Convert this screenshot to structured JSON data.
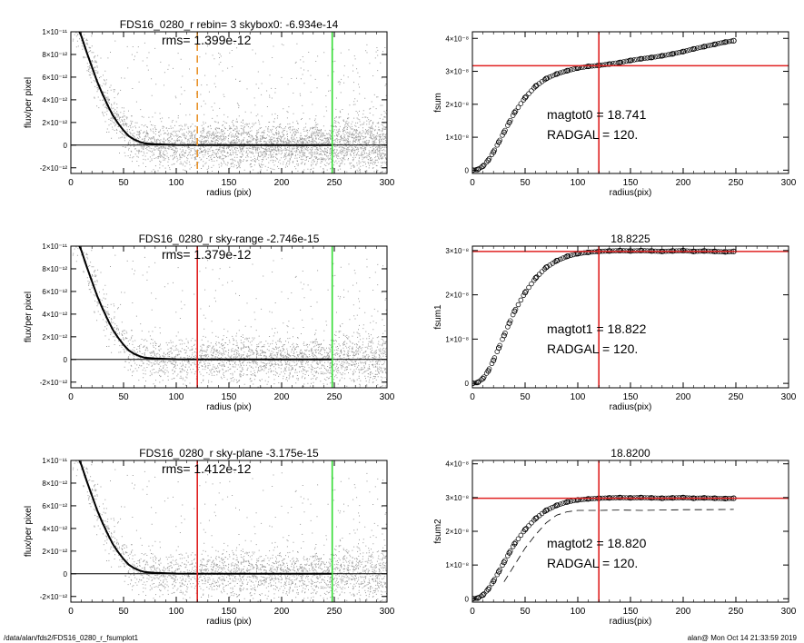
{
  "footer": {
    "left": "/data/alan/fds2/FDS16_0280_r_fsumplot1",
    "right": "alan@  Mon Oct 14 21:33:59 2019"
  },
  "colors": {
    "vline_orange": "#e8922a",
    "vline_red": "#e02020",
    "vline_green": "#33dd33",
    "scatter": "#9a9a9a",
    "curve": "#000000"
  },
  "chart_data": [
    {
      "id": "left1",
      "type": "scatter",
      "title": "FDS16_0280_r rebin= 3    skybox0: -6.934e-14",
      "annotation": "rms= 1.399e-12",
      "xlabel": "radius (pix)",
      "ylabel": "flux/per pixel",
      "xlim": [
        0,
        300
      ],
      "ylim": [
        -2.5e-12,
        1e-11
      ],
      "xticks": [
        0,
        50,
        100,
        150,
        200,
        250,
        300
      ],
      "xtick_labels": [
        "0",
        "50",
        "100",
        "150",
        "200",
        "250",
        "300"
      ],
      "yticks": [
        -2e-12,
        0,
        2e-12,
        4e-12,
        6e-12,
        8e-12,
        1e-11
      ],
      "ytick_labels": [
        "-2×10⁻¹²",
        "0",
        "2×10⁻¹²",
        "4×10⁻¹²",
        "6×10⁻¹²",
        "8×10⁻¹²",
        "1×10⁻¹¹"
      ],
      "vlines": [
        {
          "x": 120,
          "color": "orange",
          "style": "dashed"
        },
        {
          "x": 248,
          "color": "green",
          "style": "solid"
        }
      ],
      "hlines": [],
      "profile_curve": {
        "x": [
          8,
          10,
          15,
          20,
          25,
          30,
          35,
          40,
          45,
          50,
          55,
          60,
          65,
          70,
          80,
          100,
          150,
          200,
          248
        ],
        "y": [
          1e-11,
          9.6e-12,
          8.2e-12,
          6.9e-12,
          5.6e-12,
          4.5e-12,
          3.5e-12,
          2.6e-12,
          1.9e-12,
          1.3e-12,
          8e-13,
          5e-13,
          3e-13,
          1.5e-13,
          8e-14,
          2e-14,
          0,
          0,
          0
        ]
      },
      "text_lines": []
    },
    {
      "id": "right1",
      "type": "scatter",
      "title": "",
      "xlabel": "radius(pix)",
      "ylabel": "fsum",
      "xlim": [
        0,
        300
      ],
      "ylim": [
        -1e-09,
        4.2e-08
      ],
      "xticks": [
        0,
        50,
        100,
        150,
        200,
        250,
        300
      ],
      "xtick_labels": [
        "0",
        "50",
        "100",
        "150",
        "200",
        "250",
        "300"
      ],
      "yticks": [
        0,
        1e-08,
        2e-08,
        3e-08,
        4e-08
      ],
      "ytick_labels": [
        "0",
        "1×10⁻⁸",
        "2×10⁻⁸",
        "3×10⁻⁸",
        "4×10⁻⁸"
      ],
      "vlines": [
        {
          "x": 120,
          "color": "red",
          "style": "solid"
        }
      ],
      "hlines": [
        {
          "y": 3.17e-08,
          "color": "red",
          "style": "solid"
        }
      ],
      "cumulative": {
        "x": [
          0,
          5,
          10,
          15,
          20,
          25,
          30,
          35,
          40,
          50,
          60,
          70,
          80,
          90,
          100,
          110,
          120,
          130,
          140,
          150,
          160,
          170,
          180,
          190,
          200,
          210,
          220,
          230,
          240,
          248
        ],
        "y": [
          0,
          2e-10,
          1.2e-09,
          3e-09,
          5.5e-09,
          8.5e-09,
          1.15e-08,
          1.45e-08,
          1.75e-08,
          2.2e-08,
          2.55e-08,
          2.78e-08,
          2.92e-08,
          3.02e-08,
          3.1e-08,
          3.15e-08,
          3.18e-08,
          3.22e-08,
          3.27e-08,
          3.33e-08,
          3.38e-08,
          3.42e-08,
          3.47e-08,
          3.53e-08,
          3.6e-08,
          3.68e-08,
          3.75e-08,
          3.82e-08,
          3.89e-08,
          3.93e-08
        ]
      },
      "text_lines": [
        "magtot0 =  18.741",
        "RADGAL =    120."
      ]
    },
    {
      "id": "left2",
      "type": "scatter",
      "title": "FDS16_0280_r sky-range -2.746e-15",
      "annotation": "rms= 1.379e-12",
      "xlabel": "radius (pix)",
      "ylabel": "flux/per pixel",
      "xlim": [
        0,
        300
      ],
      "ylim": [
        -2.5e-12,
        1e-11
      ],
      "xticks": [
        0,
        50,
        100,
        150,
        200,
        250,
        300
      ],
      "xtick_labels": [
        "0",
        "50",
        "100",
        "150",
        "200",
        "250",
        "300"
      ],
      "yticks": [
        -2e-12,
        0,
        2e-12,
        4e-12,
        6e-12,
        8e-12,
        1e-11
      ],
      "ytick_labels": [
        "-2×10⁻¹²",
        "0",
        "2×10⁻¹²",
        "4×10⁻¹²",
        "6×10⁻¹²",
        "8×10⁻¹²",
        "1×10⁻¹¹"
      ],
      "vlines": [
        {
          "x": 120,
          "color": "red",
          "style": "solid"
        },
        {
          "x": 248,
          "color": "green",
          "style": "solid"
        }
      ],
      "hlines": [],
      "profile_curve": {
        "x": [
          8,
          10,
          15,
          20,
          25,
          30,
          35,
          40,
          45,
          50,
          55,
          60,
          65,
          70,
          80,
          100,
          150,
          200,
          248
        ],
        "y": [
          1e-11,
          9.6e-12,
          8.2e-12,
          6.9e-12,
          5.6e-12,
          4.5e-12,
          3.5e-12,
          2.6e-12,
          1.9e-12,
          1.3e-12,
          8e-13,
          5e-13,
          3e-13,
          1.5e-13,
          8e-14,
          2e-14,
          0,
          0,
          0
        ]
      },
      "text_lines": []
    },
    {
      "id": "right2",
      "type": "scatter",
      "title": "18.8225",
      "xlabel": "radius(pix)",
      "ylabel": "fsum1",
      "xlim": [
        0,
        300
      ],
      "ylim": [
        -1e-09,
        3.1e-08
      ],
      "xticks": [
        0,
        50,
        100,
        150,
        200,
        250,
        300
      ],
      "xtick_labels": [
        "0",
        "50",
        "100",
        "150",
        "200",
        "250",
        "300"
      ],
      "yticks": [
        0,
        1e-08,
        2e-08,
        3e-08
      ],
      "ytick_labels": [
        "0",
        "1×10⁻⁸",
        "2×10⁻⁸",
        "3×10⁻⁸"
      ],
      "vlines": [
        {
          "x": 120,
          "color": "red",
          "style": "solid"
        }
      ],
      "hlines": [
        {
          "y": 2.98e-08,
          "color": "red",
          "style": "solid"
        }
      ],
      "cumulative": {
        "x": [
          0,
          5,
          10,
          15,
          20,
          25,
          30,
          35,
          40,
          50,
          60,
          70,
          80,
          90,
          100,
          110,
          120,
          130,
          140,
          150,
          160,
          170,
          180,
          190,
          200,
          210,
          220,
          230,
          240,
          248
        ],
        "y": [
          0,
          2e-10,
          1.1e-09,
          2.8e-09,
          5.2e-09,
          8e-09,
          1.08e-08,
          1.36e-08,
          1.63e-08,
          2.05e-08,
          2.38e-08,
          2.62e-08,
          2.77e-08,
          2.87e-08,
          2.93e-08,
          2.96e-08,
          2.98e-08,
          2.99e-08,
          3e-08,
          2.99e-08,
          3e-08,
          2.99e-08,
          2.98e-08,
          2.99e-08,
          3e-08,
          2.98e-08,
          2.99e-08,
          2.98e-08,
          2.97e-08,
          2.98e-08
        ]
      },
      "text_lines": [
        "magtot1 =  18.822",
        "RADGAL =    120."
      ]
    },
    {
      "id": "left3",
      "type": "scatter",
      "title": "FDS16_0280_r sky-plane -3.175e-15",
      "annotation": "rms= 1.412e-12",
      "xlabel": "radius (pix)",
      "ylabel": "flux/per pixel",
      "xlim": [
        0,
        300
      ],
      "ylim": [
        -2.5e-12,
        1e-11
      ],
      "xticks": [
        0,
        50,
        100,
        150,
        200,
        250,
        300
      ],
      "xtick_labels": [
        "0",
        "50",
        "100",
        "150",
        "200",
        "250",
        "300"
      ],
      "yticks": [
        -2e-12,
        0,
        2e-12,
        4e-12,
        6e-12,
        8e-12,
        1e-11
      ],
      "ytick_labels": [
        "-2×10⁻¹²",
        "0",
        "2×10⁻¹²",
        "4×10⁻¹²",
        "6×10⁻¹²",
        "8×10⁻¹²",
        "1×10⁻¹¹"
      ],
      "vlines": [
        {
          "x": 120,
          "color": "red",
          "style": "solid"
        },
        {
          "x": 248,
          "color": "green",
          "style": "solid"
        }
      ],
      "hlines": [],
      "profile_curve": {
        "x": [
          8,
          10,
          15,
          20,
          25,
          30,
          35,
          40,
          45,
          50,
          55,
          60,
          65,
          70,
          80,
          100,
          150,
          200,
          248
        ],
        "y": [
          1e-11,
          9.6e-12,
          8.2e-12,
          6.9e-12,
          5.6e-12,
          4.5e-12,
          3.5e-12,
          2.6e-12,
          1.9e-12,
          1.3e-12,
          8e-13,
          5e-13,
          3e-13,
          1.5e-13,
          8e-14,
          2e-14,
          0,
          0,
          0
        ]
      },
      "text_lines": []
    },
    {
      "id": "right3",
      "type": "scatter",
      "title": "18.8200",
      "xlabel": "radius(pix)",
      "ylabel": "fsum2",
      "xlim": [
        0,
        300
      ],
      "ylim": [
        -1e-09,
        4.1e-08
      ],
      "xticks": [
        0,
        50,
        100,
        150,
        200,
        250,
        300
      ],
      "xtick_labels": [
        "0",
        "50",
        "100",
        "150",
        "200",
        "250",
        "300"
      ],
      "yticks": [
        0,
        1e-08,
        2e-08,
        3e-08,
        4e-08
      ],
      "ytick_labels": [
        "0",
        "1×10⁻⁸",
        "2×10⁻⁸",
        "3×10⁻⁸",
        "4×10⁻⁸"
      ],
      "vlines": [
        {
          "x": 120,
          "color": "red",
          "style": "solid"
        }
      ],
      "hlines": [
        {
          "y": 2.98e-08,
          "color": "red",
          "style": "solid"
        }
      ],
      "cumulative": {
        "x": [
          0,
          5,
          10,
          15,
          20,
          25,
          30,
          35,
          40,
          50,
          60,
          70,
          80,
          90,
          100,
          110,
          120,
          130,
          140,
          150,
          160,
          170,
          180,
          190,
          200,
          210,
          220,
          230,
          240,
          248
        ],
        "y": [
          0,
          2e-10,
          1.1e-09,
          2.8e-09,
          5.2e-09,
          8e-09,
          1.08e-08,
          1.36e-08,
          1.63e-08,
          2.05e-08,
          2.38e-08,
          2.62e-08,
          2.77e-08,
          2.87e-08,
          2.93e-08,
          2.96e-08,
          2.98e-08,
          2.99e-08,
          3e-08,
          2.99e-08,
          3e-08,
          2.99e-08,
          2.98e-08,
          2.99e-08,
          3e-08,
          2.98e-08,
          2.99e-08,
          2.98e-08,
          2.97e-08,
          2.98e-08
        ]
      },
      "dashed_curve": {
        "x": [
          30,
          40,
          50,
          60,
          70,
          80,
          90,
          100,
          110,
          120,
          140,
          160,
          180,
          200,
          220,
          248
        ],
        "y": [
          5e-09,
          1e-08,
          1.5e-08,
          1.9e-08,
          2.25e-08,
          2.48e-08,
          2.58e-08,
          2.62e-08,
          2.62e-08,
          2.62e-08,
          2.63e-08,
          2.62e-08,
          2.63e-08,
          2.64e-08,
          2.64e-08,
          2.65e-08
        ]
      },
      "text_lines": [
        "magtot2 =  18.820",
        "RADGAL =    120."
      ]
    }
  ]
}
